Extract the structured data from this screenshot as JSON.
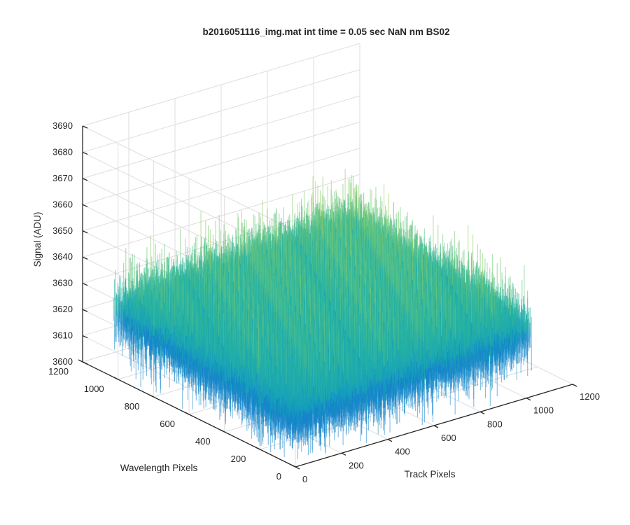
{
  "chart_data": {
    "type": "surface",
    "title": "b2016051116_img.mat int time = 0.05 sec  NaN nm BS02",
    "xlabel": "Track Pixels",
    "ylabel": "Wavelength Pixels",
    "zlabel": "Signal (ADU)",
    "xlim": [
      0,
      1200
    ],
    "ylim": [
      0,
      1200
    ],
    "zlim": [
      3600,
      3690
    ],
    "x_ticks": [
      "0",
      "200",
      "400",
      "600",
      "800",
      "1000",
      "1200"
    ],
    "y_ticks": [
      "0",
      "200",
      "400",
      "600",
      "800",
      "1000",
      "1200"
    ],
    "z_ticks": [
      "3600",
      "3610",
      "3620",
      "3630",
      "3640",
      "3650",
      "3660",
      "3670",
      "3680",
      "3690"
    ],
    "data_extent": {
      "x": [
        1,
        1024
      ],
      "y": [
        1,
        1024
      ]
    },
    "signal": {
      "mean": 3625,
      "typical_range": [
        3605,
        3650
      ],
      "min_observed": 3600,
      "max_observed": 3680
    },
    "colormap": [
      "#1f6fd1",
      "#0f9bc4",
      "#2ab5a0",
      "#8ccf6a",
      "#e7c94a"
    ],
    "grid": true,
    "view": "3-D perspective (azimuth -37.5, elevation 30)"
  }
}
